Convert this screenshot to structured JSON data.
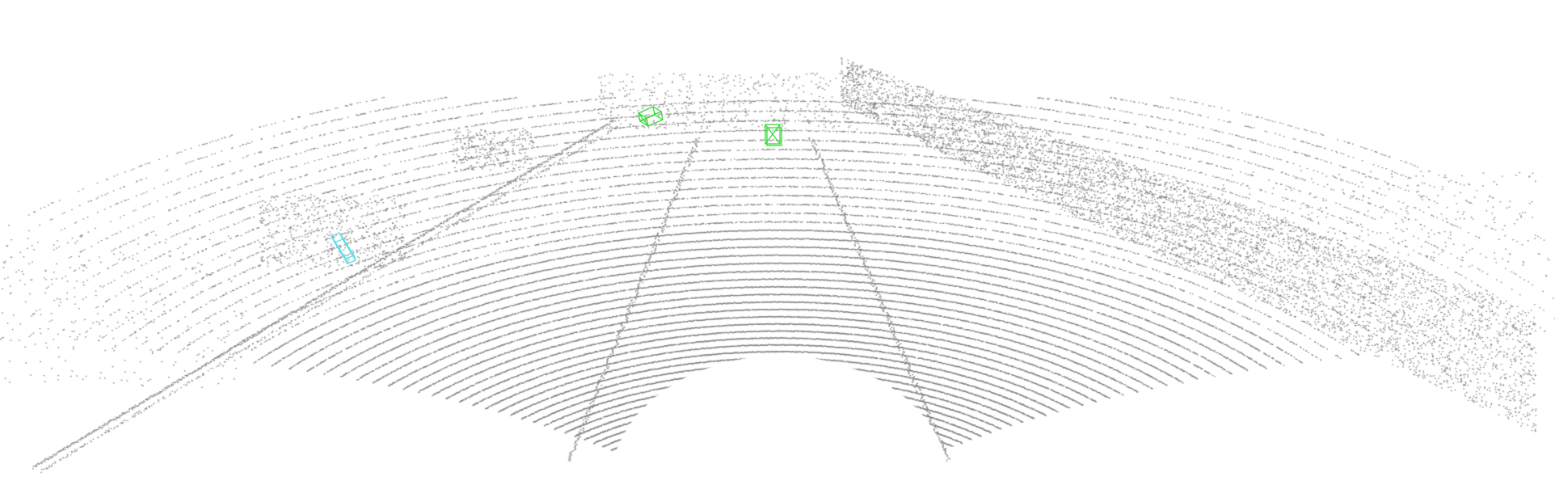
{
  "scene": {
    "kind": "lidar-point-cloud-3d-detection",
    "background_color": "#ffffff",
    "point_color": "#808080",
    "objects": [
      {
        "label": "box-green-left",
        "color": "#33dd33",
        "category": "car"
      },
      {
        "label": "box-green-center",
        "color": "#33dd33",
        "category": "car"
      },
      {
        "label": "box-cyan",
        "color": "#55e0e8",
        "category": "pedestrian"
      }
    ]
  }
}
